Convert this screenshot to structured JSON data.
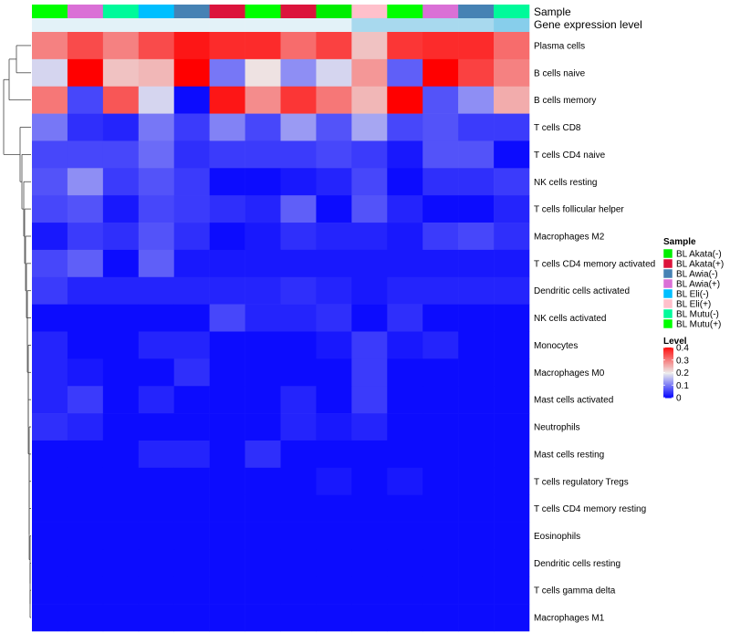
{
  "chart_data": {
    "type": "heatmap",
    "annotation_rows": [
      "Sample",
      "Gene expression level"
    ],
    "columns": [
      {
        "sample": "BL Mutu(+)",
        "expression_color": "#e3f2f8"
      },
      {
        "sample": "BL Awia(+)",
        "expression_color": "#e3f2f8"
      },
      {
        "sample": "BL Mutu(-)",
        "expression_color": "#e3f2f8"
      },
      {
        "sample": "BL Eli(-)",
        "expression_color": "#e3f2f8"
      },
      {
        "sample": "BL Awia(-)",
        "expression_color": "#e3f2f8"
      },
      {
        "sample": "BL Akata(+)",
        "expression_color": "#e3f2f8"
      },
      {
        "sample": "BL Mutu(+)",
        "expression_color": "#e3f2f8"
      },
      {
        "sample": "BL Akata(+)",
        "expression_color": "#e3f2f8"
      },
      {
        "sample": "BL Akata(-)",
        "expression_color": "#e3f2f8"
      },
      {
        "sample": "BL Eli(+)",
        "expression_color": "#a8d9ee"
      },
      {
        "sample": "BL Mutu(+)",
        "expression_color": "#a8d9ee"
      },
      {
        "sample": "BL Awia(+)",
        "expression_color": "#a8d9ee"
      },
      {
        "sample": "BL Awia(-)",
        "expression_color": "#a8d9ee"
      },
      {
        "sample": "BL Mutu(-)",
        "expression_color": "#87ceeb"
      }
    ],
    "rows": [
      "Plasma cells",
      "B cells naive",
      "B cells memory",
      "T cells CD8",
      "T cells CD4 naive",
      "NK cells resting",
      "T cells follicular helper",
      "Macrophages M2",
      "T cells CD4 memory activated",
      "Dendritic cells activated",
      "NK cells activated",
      "Monocytes",
      "Macrophages M0",
      "Mast cells activated",
      "Neutrophils",
      "Mast cells resting",
      "T cells regulatory  Tregs",
      "T cells CD4 memory resting",
      "Eosinophils",
      "Dendritic cells resting",
      "T cells gamma delta",
      "Macrophages M1"
    ],
    "values": [
      [
        0.3,
        0.35,
        0.3,
        0.35,
        0.4,
        0.38,
        0.38,
        0.32,
        0.36,
        0.24,
        0.37,
        0.38,
        0.38,
        0.32
      ],
      [
        0.18,
        0.42,
        0.24,
        0.25,
        0.42,
        0.1,
        0.21,
        0.12,
        0.18,
        0.28,
        0.08,
        0.42,
        0.36,
        0.3
      ],
      [
        0.31,
        0.06,
        0.34,
        0.18,
        0.01,
        0.4,
        0.29,
        0.37,
        0.31,
        0.25,
        0.42,
        0.07,
        0.12,
        0.26
      ],
      [
        0.1,
        0.04,
        0.03,
        0.1,
        0.05,
        0.11,
        0.06,
        0.13,
        0.07,
        0.14,
        0.06,
        0.07,
        0.05,
        0.05
      ],
      [
        0.06,
        0.06,
        0.06,
        0.09,
        0.04,
        0.05,
        0.05,
        0.05,
        0.06,
        0.05,
        0.02,
        0.07,
        0.07,
        0.01
      ],
      [
        0.07,
        0.12,
        0.05,
        0.07,
        0.05,
        0.01,
        0.01,
        0.02,
        0.03,
        0.06,
        0.01,
        0.04,
        0.04,
        0.05
      ],
      [
        0.06,
        0.07,
        0.02,
        0.06,
        0.05,
        0.04,
        0.03,
        0.08,
        0.01,
        0.07,
        0.03,
        0.01,
        0.01,
        0.03
      ],
      [
        0.02,
        0.05,
        0.04,
        0.07,
        0.04,
        0.01,
        0.02,
        0.04,
        0.03,
        0.03,
        0.02,
        0.05,
        0.06,
        0.04
      ],
      [
        0.06,
        0.08,
        0.01,
        0.08,
        0.02,
        0.02,
        0.02,
        0.02,
        0.02,
        0.02,
        0.02,
        0.02,
        0.02,
        0.02
      ],
      [
        0.05,
        0.03,
        0.03,
        0.03,
        0.03,
        0.03,
        0.03,
        0.04,
        0.03,
        0.02,
        0.03,
        0.03,
        0.03,
        0.03
      ],
      [
        0.01,
        0.01,
        0.01,
        0.01,
        0.01,
        0.06,
        0.03,
        0.03,
        0.04,
        0.01,
        0.04,
        0.01,
        0.01,
        0.01
      ],
      [
        0.03,
        0.01,
        0.01,
        0.03,
        0.03,
        0.01,
        0.01,
        0.01,
        0.02,
        0.05,
        0.02,
        0.03,
        0.01,
        0.01
      ],
      [
        0.03,
        0.02,
        0.01,
        0.01,
        0.04,
        0.01,
        0.01,
        0.01,
        0.01,
        0.05,
        0.01,
        0.01,
        0.01,
        0.01
      ],
      [
        0.03,
        0.05,
        0.01,
        0.03,
        0.01,
        0.01,
        0.01,
        0.03,
        0.01,
        0.05,
        0.01,
        0.01,
        0.01,
        0.01
      ],
      [
        0.04,
        0.03,
        0.01,
        0.01,
        0.01,
        0.01,
        0.01,
        0.03,
        0.02,
        0.03,
        0.01,
        0.01,
        0.01,
        0.01
      ],
      [
        0.01,
        0.01,
        0.01,
        0.03,
        0.03,
        0.01,
        0.04,
        0.01,
        0.01,
        0.01,
        0.01,
        0.01,
        0.01,
        0.01
      ],
      [
        0.01,
        0.01,
        0.01,
        0.01,
        0.01,
        0.01,
        0.01,
        0.01,
        0.02,
        0.01,
        0.02,
        0.01,
        0.01,
        0.01
      ],
      [
        0.01,
        0.01,
        0.01,
        0.01,
        0.01,
        0.01,
        0.01,
        0.01,
        0.01,
        0.01,
        0.01,
        0.01,
        0.01,
        0.01
      ],
      [
        0.01,
        0.01,
        0.01,
        0.01,
        0.01,
        0.01,
        0.01,
        0.01,
        0.01,
        0.01,
        0.01,
        0.01,
        0.01,
        0.01
      ],
      [
        0.01,
        0.01,
        0.01,
        0.01,
        0.01,
        0.01,
        0.01,
        0.01,
        0.01,
        0.01,
        0.01,
        0.01,
        0.01,
        0.01
      ],
      [
        0.01,
        0.01,
        0.01,
        0.01,
        0.01,
        0.01,
        0.01,
        0.01,
        0.01,
        0.01,
        0.01,
        0.01,
        0.01,
        0.01
      ],
      [
        0.01,
        0.01,
        0.01,
        0.01,
        0.01,
        0.01,
        0.01,
        0.01,
        0.01,
        0.01,
        0.01,
        0.01,
        0.01,
        0.01
      ]
    ],
    "legend": {
      "sample": {
        "title": "Sample",
        "items": [
          {
            "label": "BL Akata(-)",
            "color": "#00ee00"
          },
          {
            "label": "BL Akata(+)",
            "color": "#dc143c"
          },
          {
            "label": "BL Awia(-)",
            "color": "#4682b4"
          },
          {
            "label": "BL Awia(+)",
            "color": "#da70d6"
          },
          {
            "label": "BL Eli(-)",
            "color": "#00bfff"
          },
          {
            "label": "BL Eli(+)",
            "color": "#ffc0cb"
          },
          {
            "label": "BL Mutu(-)",
            "color": "#00fa9a"
          },
          {
            "label": "BL Mutu(+)",
            "color": "#00ff00"
          }
        ]
      },
      "level": {
        "title": "Level",
        "ticks": [
          "0.4",
          "0.3",
          "0.2",
          "0.1",
          "0"
        ],
        "tick_values": [
          0.4,
          0.3,
          0.2,
          0.1,
          0
        ]
      }
    },
    "color_scale": {
      "min": 0,
      "mid": 0.2,
      "max": 0.42,
      "low": "#0000ff",
      "middle": "#ededed",
      "high": "#ff0000"
    },
    "row_dendrogram": true
  }
}
